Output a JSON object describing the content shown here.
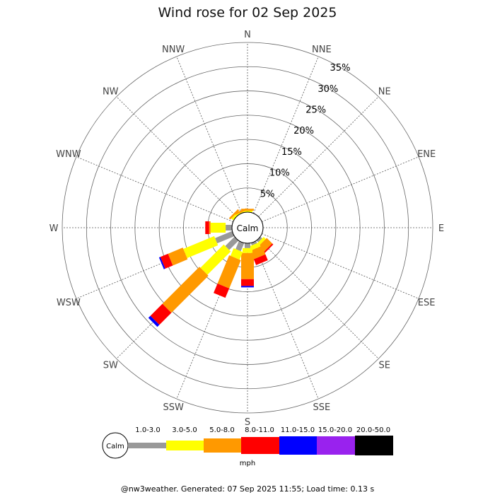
{
  "chart_data": {
    "type": "wind-rose",
    "title": "Wind rose for 02 Sep 2025",
    "directions": [
      "N",
      "NNE",
      "NE",
      "ENE",
      "E",
      "ESE",
      "SE",
      "SSE",
      "S",
      "SSW",
      "SW",
      "WSW",
      "W",
      "WNW",
      "NW",
      "NNW"
    ],
    "ring_labels": [
      "5%",
      "10%",
      "15%",
      "20%",
      "25%",
      "30%",
      "35%"
    ],
    "ring_values": [
      5,
      10,
      15,
      20,
      25,
      30,
      35
    ],
    "rmax": 35,
    "calm_label": "Calm",
    "speed_bins": [
      {
        "label": "1.0-3.0",
        "color": "#999999"
      },
      {
        "label": "3.0-5.0",
        "color": "#ffff00"
      },
      {
        "label": "5.0-8.0",
        "color": "#ff9900"
      },
      {
        "label": "8.0-11.0",
        "color": "#ff0000"
      },
      {
        "label": "11.0-15.0",
        "color": "#0000ff"
      },
      {
        "label": "15.0-20.0",
        "color": "#9922ee"
      },
      {
        "label": "20.0-50.0",
        "color": "#000000"
      }
    ],
    "unit": "mph",
    "frequencies": {
      "N": [
        0.0,
        0.3,
        0.4,
        0.0,
        0.0,
        0.0,
        0.0
      ],
      "NNE": [
        0.0,
        0.0,
        0.0,
        0.0,
        0.0,
        0.0,
        0.0
      ],
      "NE": [
        0.0,
        0.0,
        0.0,
        0.0,
        0.0,
        0.0,
        0.0
      ],
      "ENE": [
        0.0,
        0.0,
        0.0,
        0.0,
        0.0,
        0.0,
        0.0
      ],
      "E": [
        0.0,
        0.0,
        0.0,
        0.0,
        0.0,
        0.0,
        0.0
      ],
      "ESE": [
        0.0,
        0.0,
        0.0,
        0.0,
        0.0,
        0.0,
        0.0
      ],
      "SE": [
        0.5,
        0.6,
        1.6,
        0.3,
        0.0,
        0.0,
        0.0
      ],
      "SSE": [
        0.5,
        0.9,
        1.9,
        1.3,
        0.0,
        0.0,
        0.0
      ],
      "S": [
        1.0,
        1.0,
        5.4,
        1.4,
        0.3,
        0.0,
        0.0
      ],
      "SSW": [
        1.8,
        1.7,
        6.3,
        2.1,
        0.0,
        0.0,
        0.0
      ],
      "SW": [
        2.7,
        6.8,
        10.8,
        3.5,
        0.6,
        0.0,
        0.0
      ],
      "WSW": [
        3.8,
        6.9,
        3.3,
        1.7,
        0.3,
        0.0,
        0.0
      ],
      "W": [
        1.3,
        3.1,
        0.3,
        0.8,
        0.0,
        0.0,
        0.0
      ],
      "WNW": [
        0.0,
        0.0,
        0.0,
        0.0,
        0.0,
        0.0,
        0.0
      ],
      "NW": [
        0.0,
        0.5,
        0.4,
        0.0,
        0.0,
        0.0,
        0.0
      ],
      "NNW": [
        0.0,
        0.2,
        0.4,
        0.0,
        0.0,
        0.0,
        0.0
      ]
    },
    "grid": true
  },
  "footer": "@nw3weather. Generated: 07 Sep 2025 11:55; Load time: 0.13 s"
}
